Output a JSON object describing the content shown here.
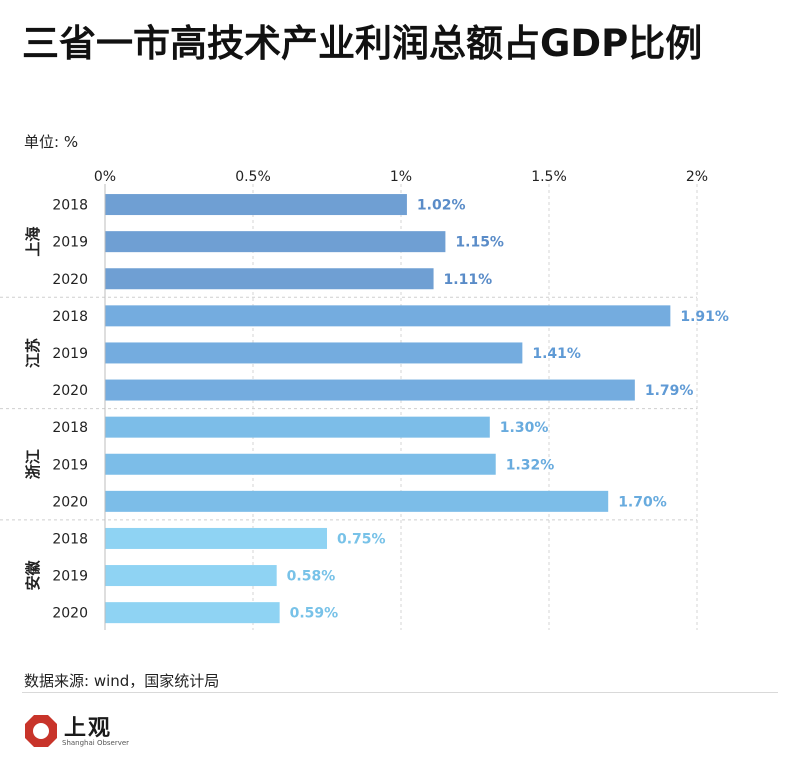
{
  "title": "三省一市高技术产业利润总额占GDP比例",
  "unit_label": "单位: %",
  "source": "数据来源: wind，国家统计局",
  "logo": {
    "name": "上观",
    "subtitle": "Shanghai Observer",
    "color": "#c8342a"
  },
  "chart_data": {
    "type": "bar",
    "orientation": "horizontal",
    "title": "三省一市高技术产业利润总额占GDP比例",
    "xlim": [
      0,
      2
    ],
    "xticks": [
      "0%",
      "0.5%",
      "1%",
      "1.5%",
      "2%"
    ],
    "xtick_values": [
      0,
      0.5,
      1,
      1.5,
      2
    ],
    "groups": [
      {
        "name": "上海",
        "color": "#6f9fd3",
        "label_color": "#5a8cc8",
        "bars": [
          {
            "year": "2018",
            "value": 1.02,
            "label": "1.02%"
          },
          {
            "year": "2019",
            "value": 1.15,
            "label": "1.15%"
          },
          {
            "year": "2020",
            "value": 1.11,
            "label": "1.11%"
          }
        ]
      },
      {
        "name": "江苏",
        "color": "#74acdf",
        "label_color": "#5f9ad5",
        "bars": [
          {
            "year": "2018",
            "value": 1.91,
            "label": "1.91%"
          },
          {
            "year": "2019",
            "value": 1.41,
            "label": "1.41%"
          },
          {
            "year": "2020",
            "value": 1.79,
            "label": "1.79%"
          }
        ]
      },
      {
        "name": "浙江",
        "color": "#7cbde8",
        "label_color": "#68abde",
        "bars": [
          {
            "year": "2018",
            "value": 1.3,
            "label": "1.30%"
          },
          {
            "year": "2019",
            "value": 1.32,
            "label": "1.32%"
          },
          {
            "year": "2020",
            "value": 1.7,
            "label": "1.70%"
          }
        ]
      },
      {
        "name": "安徽",
        "color": "#8fd3f3",
        "label_color": "#78c2e8",
        "bars": [
          {
            "year": "2018",
            "value": 0.75,
            "label": "0.75%"
          },
          {
            "year": "2019",
            "value": 0.58,
            "label": "0.58%"
          },
          {
            "year": "2020",
            "value": 0.59,
            "label": "0.59%"
          }
        ]
      }
    ]
  }
}
